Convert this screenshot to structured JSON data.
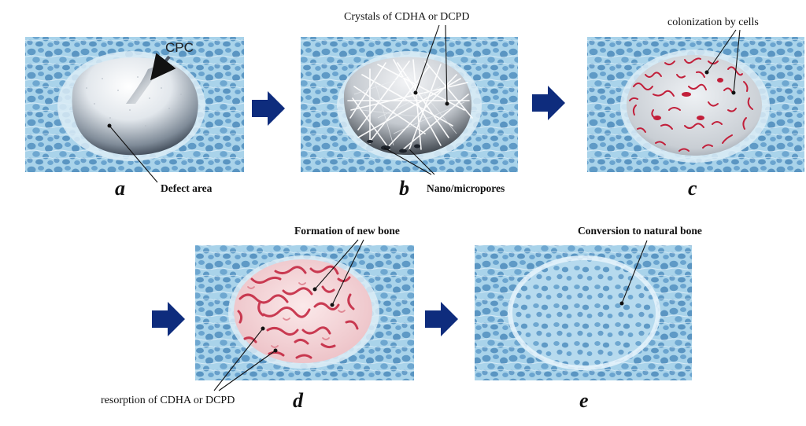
{
  "panels": {
    "a": {
      "letter": "a",
      "cpc_label": "CPC",
      "defect_label": "Defect area"
    },
    "b": {
      "letter": "b",
      "crystals_label": "Crystals of CDHA or DCPD",
      "pores_label": "Nano/micropores"
    },
    "c": {
      "letter": "c",
      "colonization_label": "colonization by cells"
    },
    "d": {
      "letter": "d",
      "formation_label": "Formation of new bone",
      "resorption_label": "resorption of CDHA or DCPD"
    },
    "e": {
      "letter": "e",
      "conversion_label": "Conversion to natural bone"
    }
  },
  "colors": {
    "bone_background": "#a9d3ea",
    "bone_cell": "#5f9ac6",
    "bone_line": "#e2f1fa",
    "arrow": "#0e2c7d",
    "cell_red": "#c21f3a",
    "new_bone_pink": "#e7b2b8",
    "cement_grey": "#9aa3ad"
  },
  "arrows": [
    "arrow-a-b",
    "arrow-b-c",
    "arrow-row2-start",
    "arrow-d-e"
  ]
}
